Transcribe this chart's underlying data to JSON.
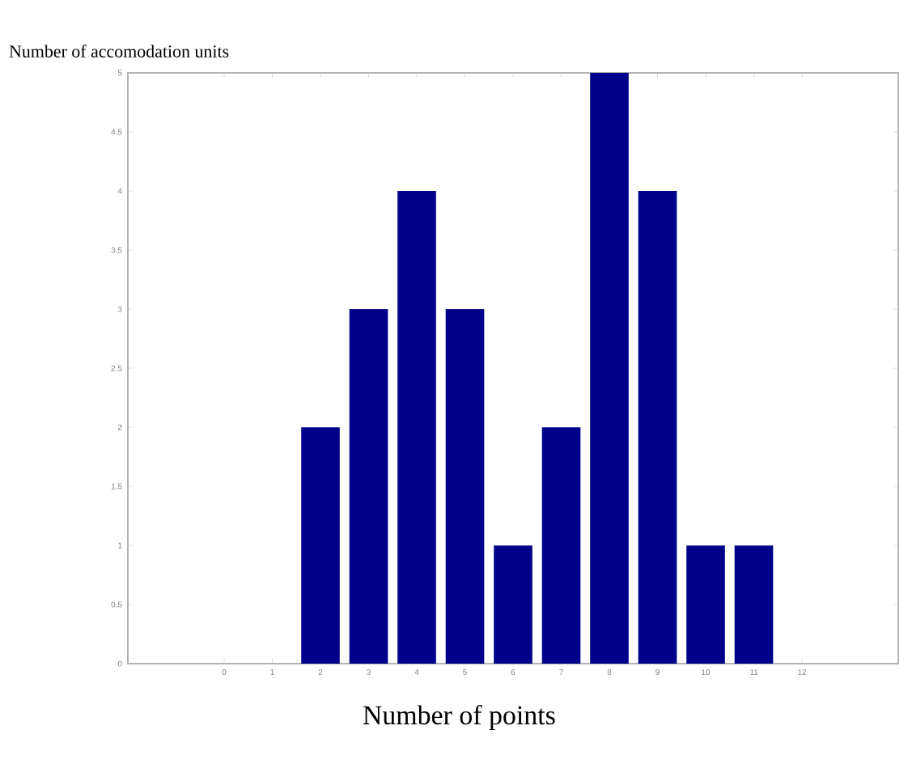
{
  "chart_data": {
    "type": "bar",
    "xlabel": "Number of points",
    "ylabel": "Number of accomodation units",
    "x": [
      2,
      3,
      4,
      5,
      6,
      7,
      8,
      9,
      10,
      11
    ],
    "values": [
      2,
      3,
      4,
      3,
      1,
      2,
      5,
      4,
      1,
      1
    ],
    "color": "#00008b",
    "xlim": [
      -2,
      14
    ],
    "xticks": [
      0,
      1,
      2,
      3,
      4,
      5,
      6,
      7,
      8,
      9,
      10,
      11,
      12
    ],
    "ylim": [
      0,
      5
    ],
    "yticks": [
      0,
      0.5,
      1,
      1.5,
      2,
      2.5,
      3,
      3.5,
      4,
      4.5,
      5
    ]
  }
}
